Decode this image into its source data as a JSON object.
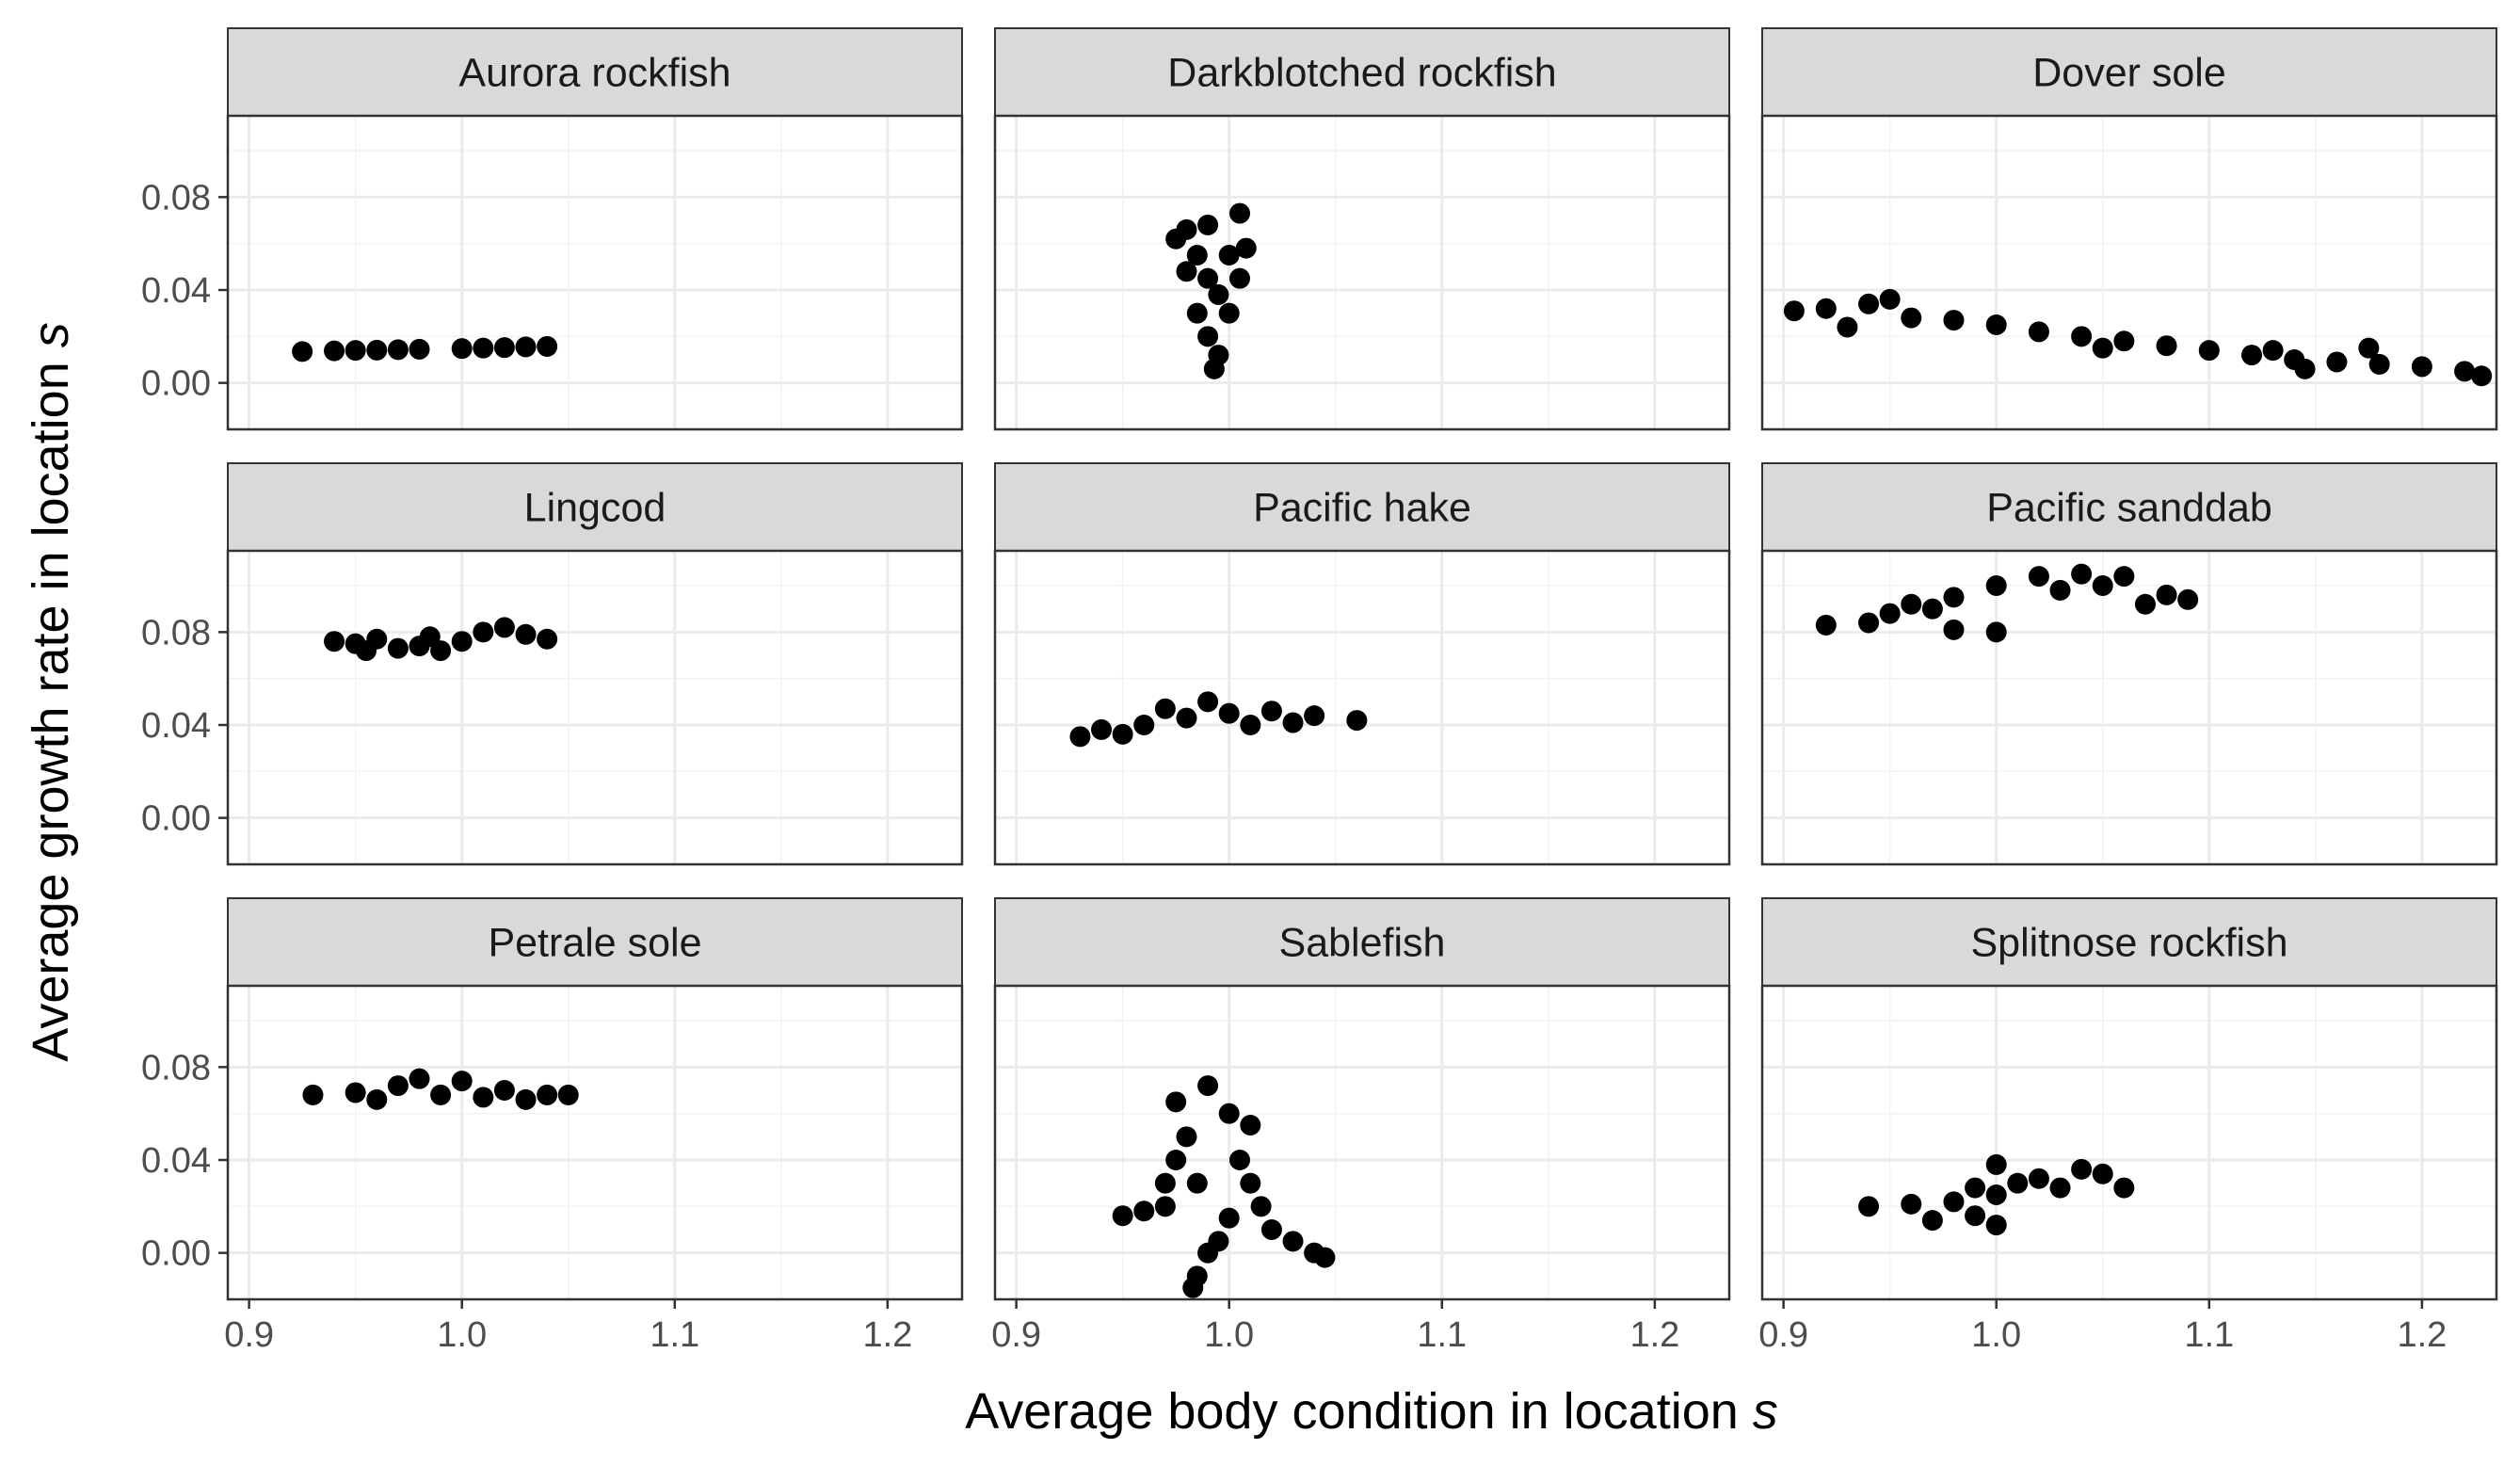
{
  "chart_data": {
    "type": "scatter",
    "layout": "facet_wrap 3x3",
    "xlabel": "Average body condition in location",
    "xlabel_var": "s",
    "ylabel": "Average growth rate in location",
    "ylabel_var": "s",
    "xlim": [
      0.89,
      1.235
    ],
    "ylim": [
      -0.02,
      0.115
    ],
    "x_ticks": [
      0.9,
      1.0,
      1.1,
      1.2
    ],
    "x_tick_labels": [
      "0.9",
      "1.0",
      "1.1",
      "1.2"
    ],
    "y_ticks": [
      0.0,
      0.04,
      0.08
    ],
    "y_tick_labels": [
      "0.00",
      "0.04",
      "0.08"
    ],
    "grid": true,
    "point_color": "#000000",
    "strip_fill": "#d9d9d9",
    "facets": [
      {
        "title": "Aurora rockfish",
        "points": [
          [
            0.925,
            0.0135
          ],
          [
            0.94,
            0.0138
          ],
          [
            0.96,
            0.0141
          ],
          [
            0.98,
            0.0145
          ],
          [
            1.0,
            0.0148
          ],
          [
            1.02,
            0.0152
          ],
          [
            1.04,
            0.0157
          ],
          [
            0.95,
            0.014
          ],
          [
            1.01,
            0.015
          ],
          [
            0.97,
            0.0143
          ],
          [
            1.03,
            0.0155
          ]
        ]
      },
      {
        "title": "Darkblotched rockfish",
        "points": [
          [
            0.975,
            0.062
          ],
          [
            0.98,
            0.066
          ],
          [
            0.99,
            0.068
          ],
          [
            1.005,
            0.073
          ],
          [
            0.985,
            0.055
          ],
          [
            0.99,
            0.045
          ],
          [
            0.995,
            0.038
          ],
          [
            1.0,
            0.055
          ],
          [
            1.005,
            0.045
          ],
          [
            0.985,
            0.03
          ],
          [
            0.99,
            0.02
          ],
          [
            0.995,
            0.012
          ],
          [
            0.993,
            0.006
          ],
          [
            1.0,
            0.03
          ],
          [
            0.98,
            0.048
          ],
          [
            1.008,
            0.058
          ]
        ]
      },
      {
        "title": "Dover sole",
        "points": [
          [
            0.905,
            0.031
          ],
          [
            0.92,
            0.032
          ],
          [
            0.94,
            0.034
          ],
          [
            0.95,
            0.036
          ],
          [
            0.96,
            0.028
          ],
          [
            0.98,
            0.027
          ],
          [
            1.0,
            0.025
          ],
          [
            1.02,
            0.022
          ],
          [
            1.04,
            0.02
          ],
          [
            1.06,
            0.018
          ],
          [
            1.08,
            0.016
          ],
          [
            1.1,
            0.014
          ],
          [
            1.12,
            0.012
          ],
          [
            1.14,
            0.01
          ],
          [
            1.16,
            0.009
          ],
          [
            1.18,
            0.008
          ],
          [
            1.2,
            0.007
          ],
          [
            1.22,
            0.005
          ],
          [
            1.228,
            0.003
          ],
          [
            1.13,
            0.014
          ],
          [
            1.175,
            0.015
          ],
          [
            1.145,
            0.006
          ],
          [
            0.93,
            0.024
          ],
          [
            1.05,
            0.015
          ]
        ]
      },
      {
        "title": "Lingcod",
        "points": [
          [
            0.94,
            0.076
          ],
          [
            0.95,
            0.075
          ],
          [
            0.96,
            0.077
          ],
          [
            0.97,
            0.073
          ],
          [
            0.98,
            0.074
          ],
          [
            0.99,
            0.072
          ],
          [
            1.0,
            0.076
          ],
          [
            1.01,
            0.08
          ],
          [
            1.02,
            0.082
          ],
          [
            1.03,
            0.079
          ],
          [
            1.04,
            0.077
          ],
          [
            0.955,
            0.072
          ],
          [
            0.985,
            0.078
          ]
        ]
      },
      {
        "title": "Pacific hake",
        "points": [
          [
            0.93,
            0.035
          ],
          [
            0.94,
            0.038
          ],
          [
            0.96,
            0.04
          ],
          [
            0.98,
            0.043
          ],
          [
            1.0,
            0.045
          ],
          [
            0.99,
            0.05
          ],
          [
            1.02,
            0.046
          ],
          [
            1.04,
            0.044
          ],
          [
            1.06,
            0.042
          ],
          [
            0.95,
            0.036
          ],
          [
            0.97,
            0.047
          ],
          [
            1.01,
            0.04
          ],
          [
            1.03,
            0.041
          ]
        ]
      },
      {
        "title": "Pacific sanddab",
        "points": [
          [
            0.92,
            0.083
          ],
          [
            0.94,
            0.084
          ],
          [
            0.95,
            0.088
          ],
          [
            0.97,
            0.09
          ],
          [
            0.98,
            0.095
          ],
          [
            1.0,
            0.1
          ],
          [
            1.02,
            0.104
          ],
          [
            1.04,
            0.105
          ],
          [
            1.06,
            0.104
          ],
          [
            1.08,
            0.096
          ],
          [
            1.09,
            0.094
          ],
          [
            1.0,
            0.08
          ],
          [
            0.98,
            0.081
          ],
          [
            1.03,
            0.098
          ],
          [
            0.96,
            0.092
          ],
          [
            1.05,
            0.1
          ],
          [
            1.07,
            0.092
          ]
        ]
      },
      {
        "title": "Petrale sole",
        "points": [
          [
            0.93,
            0.068
          ],
          [
            0.95,
            0.069
          ],
          [
            0.97,
            0.072
          ],
          [
            0.98,
            0.075
          ],
          [
            1.0,
            0.074
          ],
          [
            1.02,
            0.07
          ],
          [
            1.04,
            0.068
          ],
          [
            1.05,
            0.068
          ],
          [
            0.96,
            0.066
          ],
          [
            0.99,
            0.068
          ],
          [
            1.01,
            0.067
          ],
          [
            1.03,
            0.066
          ]
        ]
      },
      {
        "title": "Sablefish",
        "points": [
          [
            0.975,
            0.065
          ],
          [
            0.99,
            0.072
          ],
          [
            1.0,
            0.06
          ],
          [
            1.01,
            0.055
          ],
          [
            0.98,
            0.05
          ],
          [
            0.975,
            0.04
          ],
          [
            0.985,
            0.03
          ],
          [
            1.005,
            0.04
          ],
          [
            1.01,
            0.03
          ],
          [
            0.96,
            0.018
          ],
          [
            0.95,
            0.016
          ],
          [
            0.97,
            0.02
          ],
          [
            1.0,
            0.015
          ],
          [
            1.02,
            0.01
          ],
          [
            1.03,
            0.005
          ],
          [
            1.04,
            0.0
          ],
          [
            1.045,
            -0.002
          ],
          [
            0.99,
            0.0
          ],
          [
            0.985,
            -0.01
          ],
          [
            0.983,
            -0.015
          ],
          [
            0.995,
            0.005
          ],
          [
            0.97,
            0.03
          ],
          [
            1.015,
            0.02
          ]
        ]
      },
      {
        "title": "Splitnose rockfish",
        "points": [
          [
            0.94,
            0.02
          ],
          [
            0.96,
            0.021
          ],
          [
            0.98,
            0.022
          ],
          [
            0.97,
            0.014
          ],
          [
            0.99,
            0.016
          ],
          [
            1.0,
            0.025
          ],
          [
            1.01,
            0.03
          ],
          [
            1.02,
            0.032
          ],
          [
            1.0,
            0.038
          ],
          [
            1.04,
            0.036
          ],
          [
            1.05,
            0.034
          ],
          [
            1.06,
            0.028
          ],
          [
            1.03,
            0.028
          ],
          [
            0.99,
            0.028
          ],
          [
            1.0,
            0.012
          ]
        ]
      }
    ]
  }
}
